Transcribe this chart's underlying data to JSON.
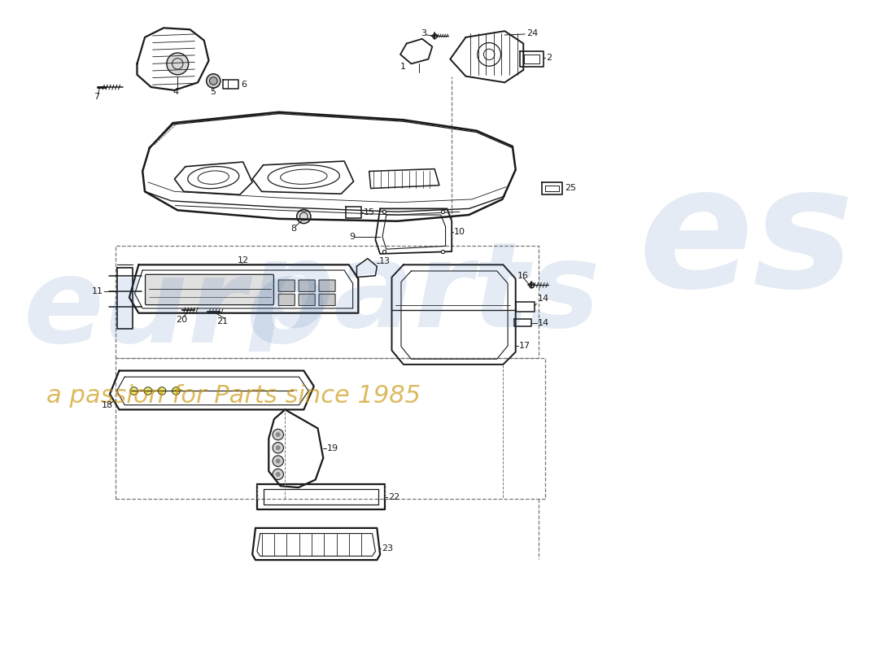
{
  "bg_color": "#ffffff",
  "line_color": "#1a1a1a",
  "wm_blue": "#3a6aaa",
  "wm_yellow": "#c8960a",
  "figsize": [
    11.0,
    8.0
  ],
  "dpi": 100
}
